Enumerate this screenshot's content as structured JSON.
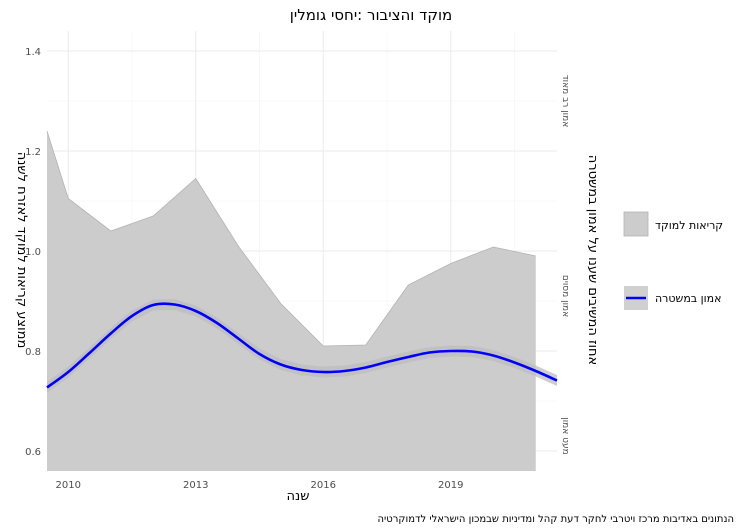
{
  "chart_data": {
    "type": "area",
    "title": "מוקד והציבור :יחסי גומלין",
    "xlabel": "שנה",
    "ylabel": "ממוצע קריאות למוקד לאזרח לשנה",
    "y2label": "אחוז המשיבים שענו על אמון במשטרה",
    "caption": "הנתונים באדיבות מרכז ויטרבי לחקר דעת קהל ומדיניות שבמכון הישראלי לדמוקרטיה",
    "xlim": [
      2009.5,
      2021.5
    ],
    "ylim": [
      0.56,
      1.44
    ],
    "x_ticks": [
      2010,
      2013,
      2016,
      2019
    ],
    "y_ticks": [
      0.6,
      0.8,
      1.0,
      1.2,
      1.4
    ],
    "y_tick_labels": [
      "0.6",
      "0.8",
      "1.0",
      "1.2",
      "1.4"
    ],
    "right_axis_labels": [
      {
        "y": 1.3,
        "text": "אמון רב מאוד"
      },
      {
        "y": 0.91,
        "text": "אמון מסוים"
      },
      {
        "y": 0.63,
        "text": "מעט אמון"
      }
    ],
    "grid": true,
    "legend_position": "right",
    "series": [
      {
        "name": "קריאות למוקד",
        "kind": "area",
        "color": "#cccccc",
        "x": [
          2009.5,
          2010,
          2011,
          2012,
          2013,
          2014,
          2015,
          2016,
          2017,
          2018,
          2019,
          2020,
          2021
        ],
        "values": [
          1.24,
          1.105,
          1.04,
          1.07,
          1.145,
          1.01,
          0.895,
          0.81,
          0.812,
          0.932,
          0.975,
          1.008,
          0.99
        ]
      },
      {
        "name": "אמון במשטרה",
        "kind": "line",
        "color": "#0000ff",
        "band_color": "#bebebe",
        "x": [
          2009.5,
          2010,
          2010.5,
          2011,
          2011.5,
          2012,
          2012.5,
          2013,
          2013.5,
          2014,
          2014.5,
          2015,
          2015.5,
          2016,
          2016.5,
          2017,
          2017.5,
          2018,
          2018.5,
          2019,
          2019.5,
          2020,
          2020.5,
          2021,
          2021.5
        ],
        "values": [
          0.727,
          0.758,
          0.796,
          0.835,
          0.87,
          0.892,
          0.893,
          0.88,
          0.856,
          0.825,
          0.794,
          0.773,
          0.762,
          0.758,
          0.76,
          0.767,
          0.778,
          0.788,
          0.797,
          0.8,
          0.799,
          0.791,
          0.777,
          0.76,
          0.741
        ]
      }
    ]
  }
}
